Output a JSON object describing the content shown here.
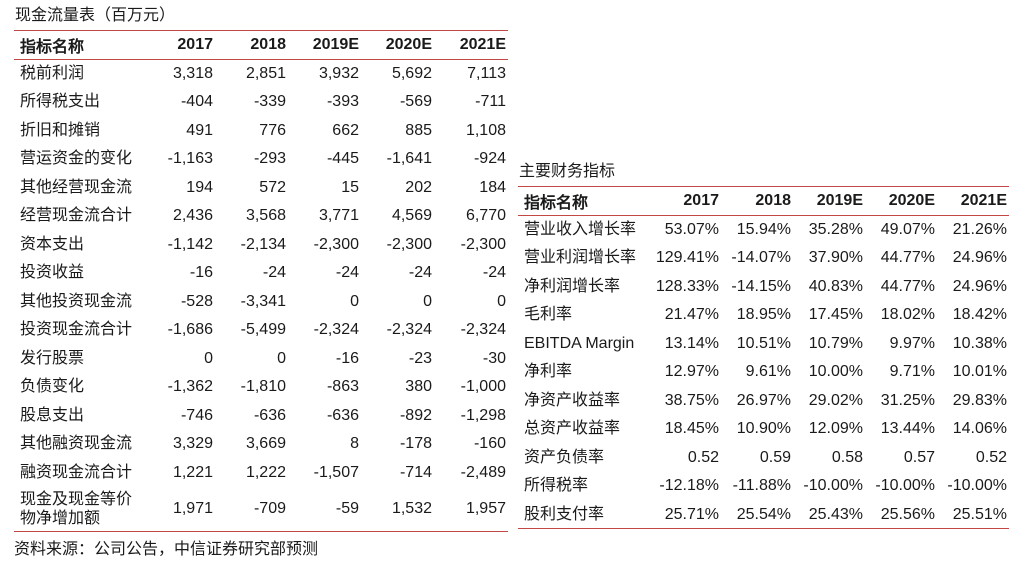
{
  "page": {
    "source_note": "资料来源：公司公告，中信证券研究部预测"
  },
  "tables": {
    "cash_flow": {
      "title": "现金流量表（百万元）",
      "columns": [
        "指标名称",
        "2017",
        "2018",
        "2019E",
        "2020E",
        "2021E"
      ],
      "rows": [
        [
          "税前利润",
          "3,318",
          "2,851",
          "3,932",
          "5,692",
          "7,113"
        ],
        [
          "所得税支出",
          "-404",
          "-339",
          "-393",
          "-569",
          "-711"
        ],
        [
          "折旧和摊销",
          "491",
          "776",
          "662",
          "885",
          "1,108"
        ],
        [
          "营运资金的变化",
          "-1,163",
          "-293",
          "-445",
          "-1,641",
          "-924"
        ],
        [
          "其他经营现金流",
          "194",
          "572",
          "15",
          "202",
          "184"
        ],
        [
          "经营现金流合计",
          "2,436",
          "3,568",
          "3,771",
          "4,569",
          "6,770"
        ],
        [
          "资本支出",
          "-1,142",
          "-2,134",
          "-2,300",
          "-2,300",
          "-2,300"
        ],
        [
          "投资收益",
          "-16",
          "-24",
          "-24",
          "-24",
          "-24"
        ],
        [
          "其他投资现金流",
          "-528",
          "-3,341",
          "0",
          "0",
          "0"
        ],
        [
          "投资现金流合计",
          "-1,686",
          "-5,499",
          "-2,324",
          "-2,324",
          "-2,324"
        ],
        [
          "发行股票",
          "0",
          "0",
          "-16",
          "-23",
          "-30"
        ],
        [
          "负债变化",
          "-1,362",
          "-1,810",
          "-863",
          "380",
          "-1,000"
        ],
        [
          "股息支出",
          "-746",
          "-636",
          "-636",
          "-892",
          "-1,298"
        ],
        [
          "其他融资现金流",
          "3,329",
          "3,669",
          "8",
          "-178",
          "-160"
        ],
        [
          "融资现金流合计",
          "1,221",
          "1,222",
          "-1,507",
          "-714",
          "-2,489"
        ],
        [
          "现金及现金等价物净增加额",
          "1,971",
          "-709",
          "-59",
          "1,532",
          "1,957"
        ]
      ]
    },
    "key_metrics": {
      "title": "主要财务指标",
      "columns": [
        "指标名称",
        "2017",
        "2018",
        "2019E",
        "2020E",
        "2021E"
      ],
      "rows": [
        [
          "营业收入增长率",
          "53.07%",
          "15.94%",
          "35.28%",
          "49.07%",
          "21.26%"
        ],
        [
          "营业利润增长率",
          "129.41%",
          "-14.07%",
          "37.90%",
          "44.77%",
          "24.96%"
        ],
        [
          "净利润增长率",
          "128.33%",
          "-14.15%",
          "40.83%",
          "44.77%",
          "24.96%"
        ],
        [
          "毛利率",
          "21.47%",
          "18.95%",
          "17.45%",
          "18.02%",
          "18.42%"
        ],
        [
          "EBITDA Margin",
          "13.14%",
          "10.51%",
          "10.79%",
          "9.97%",
          "10.38%"
        ],
        [
          "净利率",
          "12.97%",
          "9.61%",
          "10.00%",
          "9.71%",
          "10.01%"
        ],
        [
          "净资产收益率",
          "38.75%",
          "26.97%",
          "29.02%",
          "31.25%",
          "29.83%"
        ],
        [
          "总资产收益率",
          "18.45%",
          "10.90%",
          "12.09%",
          "13.44%",
          "14.06%"
        ],
        [
          "资产负债率",
          "0.52",
          "0.59",
          "0.58",
          "0.57",
          "0.52"
        ],
        [
          "所得税率",
          "-12.18%",
          "-11.88%",
          "-10.00%",
          "-10.00%",
          "-10.00%"
        ],
        [
          "股利支付率",
          "25.71%",
          "25.54%",
          "25.43%",
          "25.56%",
          "25.51%"
        ]
      ]
    }
  },
  "colors": {
    "accent_red": "#C24845",
    "text": "#1a1a1a",
    "background": "#ffffff"
  }
}
